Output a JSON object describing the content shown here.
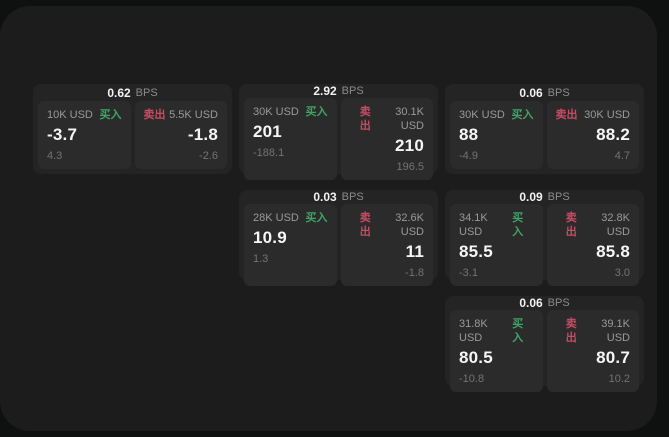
{
  "labels": {
    "bps_unit": "BPS",
    "buy": "买入",
    "sell": "卖出"
  },
  "colors": {
    "page_background": "#0f1010",
    "window_background": "#1b1c1b",
    "card_background": "#232423",
    "tile_background": "#2a2b2a",
    "buy_green": "#3fa567",
    "sell_red": "#cb4a63",
    "primary_text": "#f6f6f6",
    "muted_text": "#9a9a9a",
    "faint_text": "#737373"
  },
  "cards": [
    {
      "bps": "0.62",
      "buy": {
        "notional": "10K USD",
        "price": "-3.7",
        "delta": "4.3"
      },
      "sell": {
        "notional": "5.5K USD",
        "price": "-1.8",
        "delta": "-2.6"
      }
    },
    {
      "bps": "2.92",
      "buy": {
        "notional": "30K USD",
        "price": "201",
        "delta": "-188.1"
      },
      "sell": {
        "notional": "30.1K USD",
        "price": "210",
        "delta": "196.5"
      }
    },
    {
      "bps": "0.06",
      "buy": {
        "notional": "30K USD",
        "price": "88",
        "delta": "-4.9"
      },
      "sell": {
        "notional": "30K USD",
        "price": "88.2",
        "delta": "4.7"
      }
    },
    {
      "bps": "0.03",
      "buy": {
        "notional": "28K USD",
        "price": "10.9",
        "delta": "1.3"
      },
      "sell": {
        "notional": "32.6K USD",
        "price": "11",
        "delta": "-1.8"
      }
    },
    {
      "bps": "0.09",
      "buy": {
        "notional": "34.1K USD",
        "price": "85.5",
        "delta": "-3.1"
      },
      "sell": {
        "notional": "32.8K USD",
        "price": "85.8",
        "delta": "3.0"
      }
    },
    {
      "bps": "0.06",
      "buy": {
        "notional": "31.8K USD",
        "price": "80.5",
        "delta": "-10.8"
      },
      "sell": {
        "notional": "39.1K USD",
        "price": "80.7",
        "delta": "10.2"
      }
    }
  ]
}
